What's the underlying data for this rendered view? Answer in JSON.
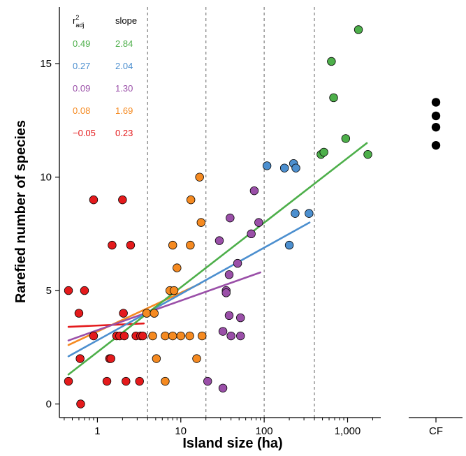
{
  "chart_data": {
    "type": "scatter",
    "title": "",
    "xlabel": "Island size (ha)",
    "ylabel": "Rarefied number of species",
    "x_scale": "log",
    "x_ticks": [
      1,
      10,
      100,
      1000
    ],
    "x_tick_labels": [
      "1",
      "10",
      "100",
      "1,000"
    ],
    "y_ticks": [
      0,
      5,
      10,
      15
    ],
    "y_tick_labels": [
      "0",
      "5",
      "10",
      "15"
    ],
    "xlim": [
      0.35,
      2500
    ],
    "ylim": [
      -0.6,
      17.5
    ],
    "vlines": [
      4,
      20,
      100,
      400
    ],
    "legend": {
      "col1_header_base": "r",
      "col1_header_sup": "2",
      "col1_header_sub": "adj",
      "col2_header": "slope"
    },
    "series": [
      {
        "color": "#4daf4a",
        "r2_adj": "0.49",
        "slope": "2.84",
        "line": {
          "x": [
            0.45,
            1700
          ],
          "y": [
            1.3,
            11.5
          ]
        },
        "points": [
          [
            480,
            11.0
          ],
          [
            520,
            11.1
          ],
          [
            640,
            15.1
          ],
          [
            680,
            13.5
          ],
          [
            950,
            11.7
          ],
          [
            1350,
            16.5
          ],
          [
            1750,
            11.0
          ]
        ]
      },
      {
        "color": "#4c8fcf",
        "r2_adj": "0.27",
        "slope": "2.04",
        "line": {
          "x": [
            0.45,
            350
          ],
          "y": [
            2.1,
            8.0
          ]
        },
        "points": [
          [
            108,
            10.5
          ],
          [
            175,
            10.4
          ],
          [
            200,
            7.0
          ],
          [
            225,
            10.6
          ],
          [
            240,
            10.4
          ],
          [
            235,
            8.4
          ],
          [
            345,
            8.4
          ]
        ]
      },
      {
        "color": "#9a4fa8",
        "r2_adj": "0.09",
        "slope": "1.30",
        "line": {
          "x": [
            0.45,
            90
          ],
          "y": [
            2.8,
            5.8
          ]
        },
        "points": [
          [
            21,
            1.0
          ],
          [
            29,
            7.2
          ],
          [
            32,
            0.7
          ],
          [
            32,
            3.2
          ],
          [
            35,
            5.0
          ],
          [
            35,
            4.9
          ],
          [
            39,
            8.2
          ],
          [
            38,
            5.7
          ],
          [
            38,
            3.9
          ],
          [
            40,
            3.0
          ],
          [
            48,
            6.2
          ],
          [
            52,
            3.8
          ],
          [
            52,
            3.0
          ],
          [
            70,
            7.5
          ],
          [
            76,
            9.4
          ],
          [
            86,
            8.0
          ]
        ]
      },
      {
        "color": "#f58a21",
        "r2_adj": "0.08",
        "slope": "1.69",
        "line": {
          "x": [
            0.45,
            17
          ],
          "y": [
            2.6,
            5.3
          ]
        },
        "points": [
          [
            3.9,
            4.0
          ],
          [
            4.6,
            3.0
          ],
          [
            4.8,
            4.0
          ],
          [
            5.1,
            2.0
          ],
          [
            6.5,
            1.0
          ],
          [
            6.5,
            3.0
          ],
          [
            7.4,
            5.0
          ],
          [
            8.0,
            3.0
          ],
          [
            8.0,
            7.0
          ],
          [
            8.3,
            5.0
          ],
          [
            9.0,
            6.0
          ],
          [
            10.0,
            3.0
          ],
          [
            12.8,
            3.0
          ],
          [
            13.0,
            7.0
          ],
          [
            13.2,
            9.0
          ],
          [
            15.5,
            2.0
          ],
          [
            16.8,
            10.0
          ],
          [
            17.5,
            8.0
          ],
          [
            18.0,
            3.0
          ]
        ]
      },
      {
        "color": "#e41a1c",
        "r2_adj": "−0.05",
        "slope": "0.23",
        "line": {
          "x": [
            0.45,
            3.6
          ],
          "y": [
            3.4,
            3.55
          ]
        },
        "points": [
          [
            0.45,
            5.0
          ],
          [
            0.45,
            1.0
          ],
          [
            0.6,
            4.0
          ],
          [
            0.62,
            2.0
          ],
          [
            0.63,
            0.0
          ],
          [
            0.7,
            5.0
          ],
          [
            0.9,
            9.0
          ],
          [
            0.9,
            3.0
          ],
          [
            1.3,
            1.0
          ],
          [
            1.4,
            2.0
          ],
          [
            1.45,
            2.0
          ],
          [
            1.5,
            7.0
          ],
          [
            1.7,
            3.0
          ],
          [
            1.85,
            3.0
          ],
          [
            2.0,
            9.0
          ],
          [
            2.05,
            4.0
          ],
          [
            2.1,
            3.0
          ],
          [
            2.2,
            1.0
          ],
          [
            2.5,
            7.0
          ],
          [
            2.9,
            3.0
          ],
          [
            3.2,
            1.0
          ],
          [
            3.3,
            3.0
          ],
          [
            3.5,
            3.0
          ]
        ]
      }
    ],
    "cf_group": {
      "label": "CF",
      "color": "#000000",
      "points": [
        11.4,
        12.2,
        12.7,
        13.3
      ]
    }
  }
}
